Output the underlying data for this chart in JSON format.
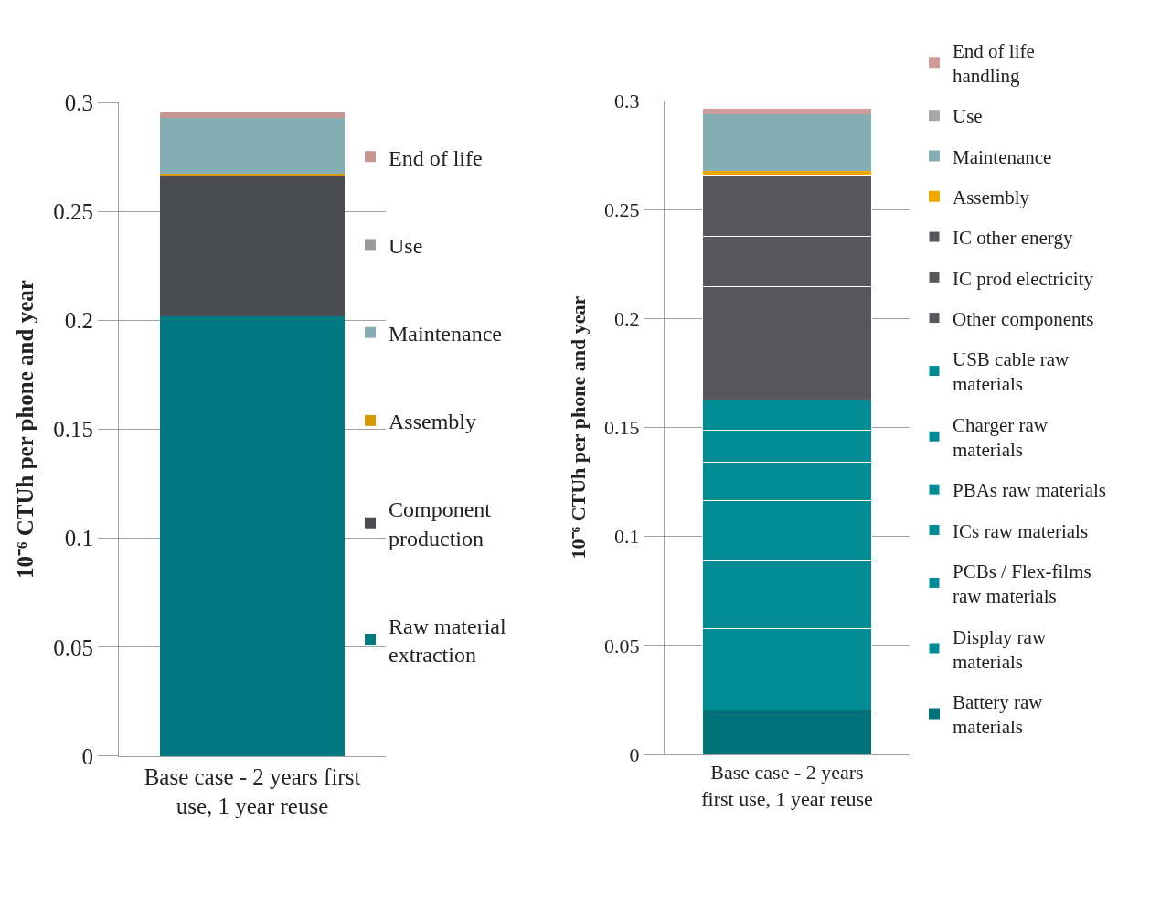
{
  "chart_data": [
    {
      "type": "bar",
      "stacked": true,
      "categories": [
        "Base case - 2 years first use, 1 year reuse"
      ],
      "ylabel": "10⁻⁶ CTUh per phone and year",
      "ylim": [
        0,
        0.3
      ],
      "yticks": [
        0,
        0.05,
        0.1,
        0.15,
        0.2,
        0.25,
        0.3
      ],
      "grid": "y",
      "legend": "right",
      "series": [
        {
          "name": "Raw material extraction",
          "color": "#007a80",
          "values": [
            0.202
          ]
        },
        {
          "name": "Component production",
          "color": "#4b4c50",
          "values": [
            0.064
          ]
        },
        {
          "name": "Assembly",
          "color": "#d49a00",
          "values": [
            0.0015
          ]
        },
        {
          "name": "Maintenance",
          "color": "#84aeb4",
          "values": [
            0.0255
          ]
        },
        {
          "name": "Use",
          "color": "#999999",
          "values": [
            0
          ]
        },
        {
          "name": "End of life",
          "color": "#c99592",
          "values": [
            0.0025
          ]
        }
      ]
    },
    {
      "type": "bar",
      "stacked": true,
      "categories": [
        "Base case - 2 years first use, 1 year reuse"
      ],
      "ylabel": "10⁻⁶ CTUh per phone and year",
      "ylim": [
        0,
        0.3
      ],
      "yticks": [
        0,
        0.05,
        0.1,
        0.15,
        0.2,
        0.25,
        0.3
      ],
      "grid": "y",
      "legend": "right",
      "series": [
        {
          "name": "Battery raw materials",
          "color": "#00727a",
          "values": [
            0.0204
          ]
        },
        {
          "name": "Display raw materials",
          "color": "#008a94",
          "values": [
            0.0374
          ]
        },
        {
          "name": "PCBs / Flex-films raw materials",
          "color": "#008a94",
          "values": [
            0.0313
          ]
        },
        {
          "name": "ICs raw materials",
          "color": "#008a94",
          "values": [
            0.0272
          ]
        },
        {
          "name": "PBAs raw materials",
          "color": "#008a94",
          "values": [
            0.0177
          ]
        },
        {
          "name": "Charger raw materials",
          "color": "#008a94",
          "values": [
            0.015
          ]
        },
        {
          "name": "USB cable raw materials",
          "color": "#008a94",
          "values": [
            0.0136
          ]
        },
        {
          "name": "Other components",
          "color": "#58585c",
          "values": [
            0.0521
          ]
        },
        {
          "name": "IC prod electricity",
          "color": "#58585c",
          "values": [
            0.0229
          ]
        },
        {
          "name": "IC other energy",
          "color": "#58585c",
          "values": [
            0.0284
          ]
        },
        {
          "name": "Assembly",
          "color": "#f0a800",
          "values": [
            0.0016
          ]
        },
        {
          "name": "Maintenance",
          "color": "#84aeb4",
          "values": [
            0.0261
          ]
        },
        {
          "name": "Use",
          "color": "#a6a6a6",
          "values": [
            0
          ]
        },
        {
          "name": "End of life handling",
          "color": "#d09c9a",
          "values": [
            0.0026
          ]
        }
      ]
    }
  ]
}
